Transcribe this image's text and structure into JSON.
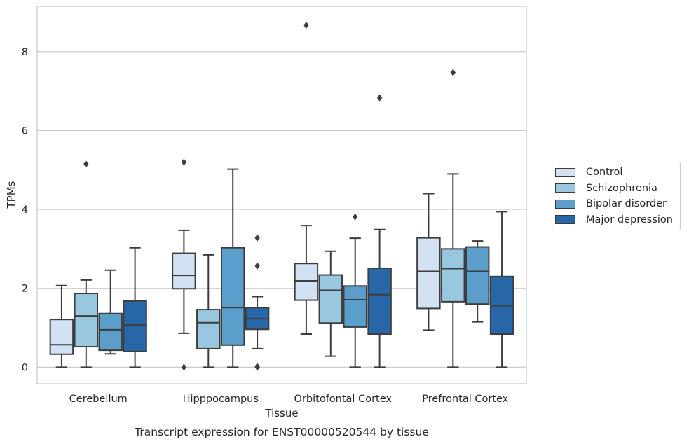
{
  "chart_data": {
    "type": "box",
    "title": "",
    "caption": "Transcript expression for ENST00000520544 by tissue",
    "xlabel": "Tissue",
    "ylabel": "TPMs",
    "ylim": [
      -0.42,
      9.15
    ],
    "yticks": [
      0,
      2,
      4,
      6,
      8
    ],
    "grid": "horizontal",
    "legend_position": "right",
    "categories": [
      "Cerebellum",
      "Hipppocampus",
      "Orbitofontal Cortex",
      "Prefrontal Cortex"
    ],
    "series": [
      {
        "name": "Control",
        "color": "#d2e2f2",
        "boxes": [
          {
            "whislo": 0.0,
            "q1": 0.33,
            "med": 0.57,
            "q3": 1.21,
            "whishi": 2.07,
            "fliers": []
          },
          {
            "whislo": 0.86,
            "q1": 1.99,
            "med": 2.33,
            "q3": 2.89,
            "whishi": 3.47,
            "fliers": [
              5.2,
              0.0
            ]
          },
          {
            "whislo": 0.84,
            "q1": 1.7,
            "med": 2.19,
            "q3": 2.63,
            "whishi": 3.59,
            "fliers": [
              8.67
            ]
          },
          {
            "whislo": 0.94,
            "q1": 1.49,
            "med": 2.43,
            "q3": 3.28,
            "whishi": 4.4,
            "fliers": []
          }
        ]
      },
      {
        "name": "Schizophrenia",
        "color": "#9ac7e0",
        "boxes": [
          {
            "whislo": 0.0,
            "q1": 0.52,
            "med": 1.3,
            "q3": 1.87,
            "whishi": 2.21,
            "fliers": [
              5.15
            ]
          },
          {
            "whislo": 0.0,
            "q1": 0.47,
            "med": 1.13,
            "q3": 1.46,
            "whishi": 2.85,
            "fliers": []
          },
          {
            "whislo": 0.28,
            "q1": 1.12,
            "med": 1.95,
            "q3": 2.34,
            "whishi": 2.94,
            "fliers": []
          },
          {
            "whislo": 0.0,
            "q1": 1.66,
            "med": 2.5,
            "q3": 3.0,
            "whishi": 4.9,
            "fliers": [
              7.47
            ]
          }
        ]
      },
      {
        "name": "Bipolar disorder",
        "color": "#5b9ecb",
        "boxes": [
          {
            "whislo": 0.34,
            "q1": 0.43,
            "med": 0.95,
            "q3": 1.36,
            "whishi": 2.46,
            "fliers": []
          },
          {
            "whislo": 0.0,
            "q1": 0.56,
            "med": 1.51,
            "q3": 3.03,
            "whishi": 5.02,
            "fliers": []
          },
          {
            "whislo": 0.0,
            "q1": 1.02,
            "med": 1.71,
            "q3": 2.06,
            "whishi": 3.27,
            "fliers": [
              3.81
            ]
          },
          {
            "whislo": 1.15,
            "q1": 1.6,
            "med": 2.43,
            "q3": 3.05,
            "whishi": 3.2,
            "fliers": []
          }
        ]
      },
      {
        "name": "Major depression",
        "color": "#2767a7",
        "boxes": [
          {
            "whislo": 0.0,
            "q1": 0.4,
            "med": 1.07,
            "q3": 1.68,
            "whishi": 3.03,
            "fliers": []
          },
          {
            "whislo": 0.47,
            "q1": 0.96,
            "med": 1.23,
            "q3": 1.51,
            "whishi": 1.79,
            "fliers": [
              3.28,
              2.57,
              0.02,
              0.0
            ]
          },
          {
            "whislo": 0.0,
            "q1": 0.84,
            "med": 1.84,
            "q3": 2.51,
            "whishi": 3.49,
            "fliers": [
              6.83
            ]
          },
          {
            "whislo": 0.0,
            "q1": 0.84,
            "med": 1.56,
            "q3": 2.3,
            "whishi": 3.94,
            "fliers": []
          }
        ]
      }
    ]
  }
}
